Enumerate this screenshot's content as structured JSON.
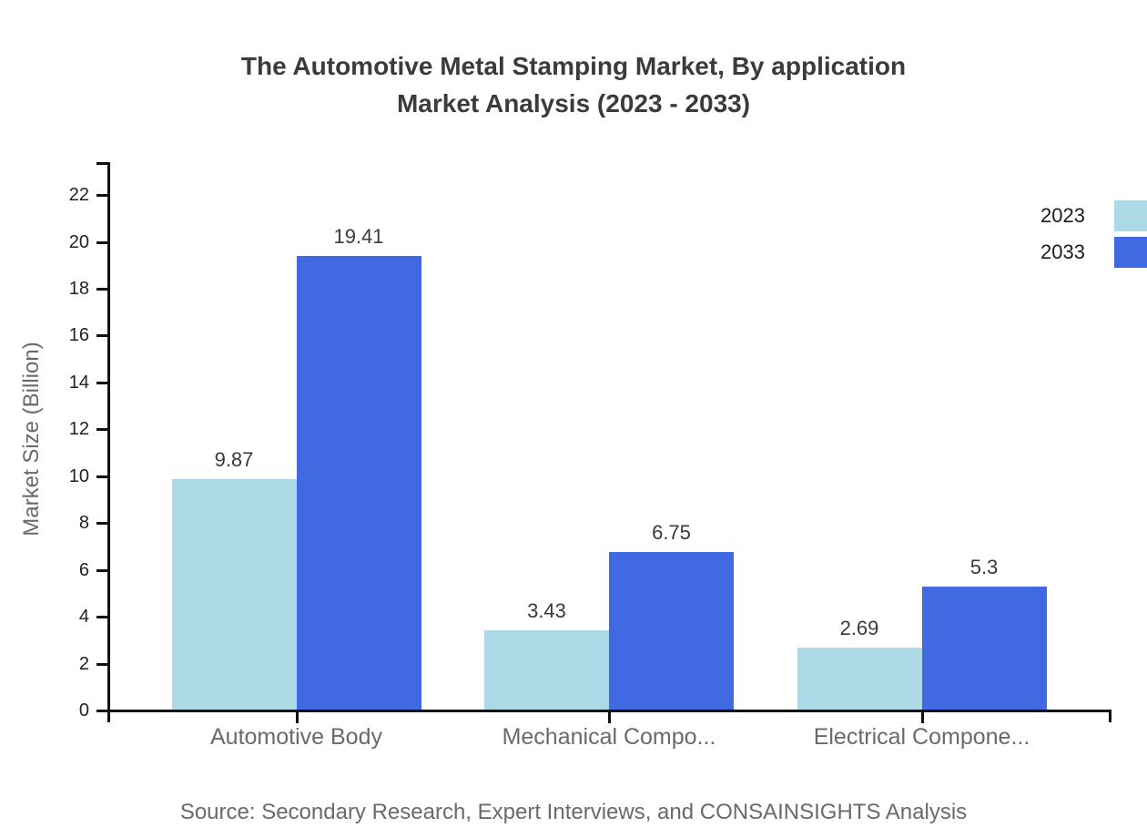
{
  "title": {
    "line1": "The Automotive Metal Stamping Market, By application",
    "line2": "Market Analysis (2023 - 2033)"
  },
  "source": "Source: Secondary Research, Expert Interviews, and CONSAINSIGHTS Analysis",
  "chart_data": {
    "type": "bar",
    "title": "The Automotive Metal Stamping Market, By application Market Analysis (2023 - 2033)",
    "categories": [
      "Automotive Body",
      "Mechanical Compo...",
      "Electrical Compone..."
    ],
    "series": [
      {
        "name": "2023",
        "color": "#ADD8E6",
        "values": [
          9.87,
          3.43,
          2.69
        ]
      },
      {
        "name": "2033",
        "color": "#4169E1",
        "values": [
          19.41,
          6.75,
          5.3
        ]
      }
    ],
    "xlabel": "",
    "ylabel": "Market Size (Billion)",
    "ylim": [
      0,
      23.4
    ],
    "yticks": [
      0,
      2,
      4,
      6,
      8,
      10,
      12,
      14,
      16,
      18,
      20,
      22
    ],
    "grid": false,
    "value_labels": true,
    "legend_position": "top-right",
    "axis_color": "#111111",
    "label_color": "#6a6a6a"
  }
}
